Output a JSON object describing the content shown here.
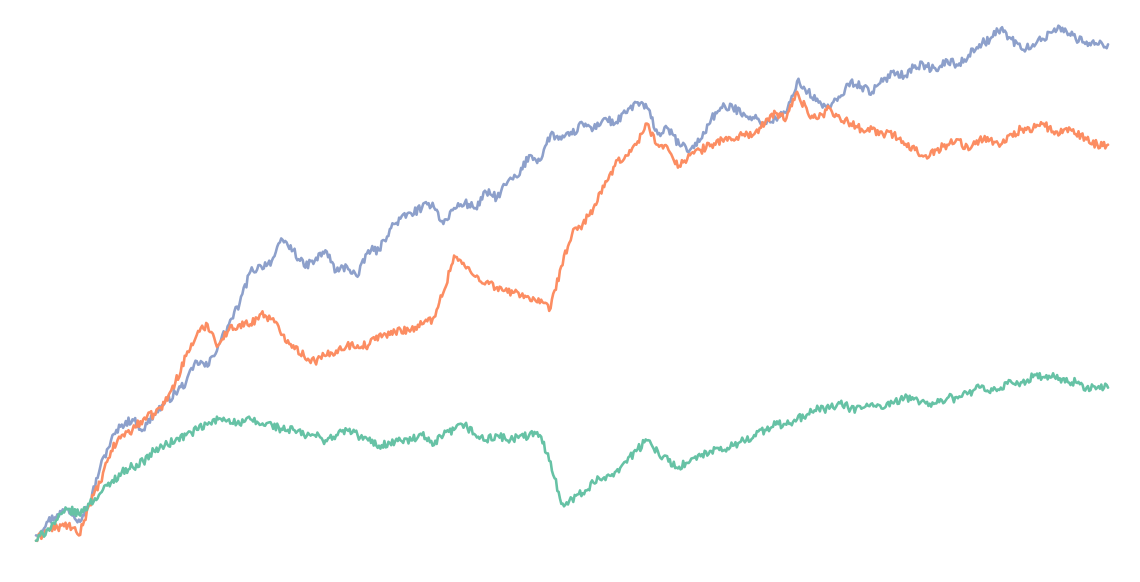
{
  "chart_data": {
    "type": "line",
    "title": "",
    "xlabel": "",
    "ylabel": "",
    "grid": false,
    "legend": "none",
    "x_range": [
      0,
      100
    ],
    "y_range": [
      0,
      100
    ],
    "series": [
      {
        "color": "#8da0cb",
        "points": [
          [
            0,
            2
          ],
          [
            1,
            4.5
          ],
          [
            2,
            6
          ],
          [
            3,
            7
          ],
          [
            4,
            5
          ],
          [
            5,
            8
          ],
          [
            6,
            15
          ],
          [
            7,
            20
          ],
          [
            8,
            23
          ],
          [
            9,
            24
          ],
          [
            10,
            22
          ],
          [
            11,
            25
          ],
          [
            12,
            27
          ],
          [
            13,
            29
          ],
          [
            14,
            31
          ],
          [
            15,
            35
          ],
          [
            16,
            34
          ],
          [
            17,
            38
          ],
          [
            18,
            42
          ],
          [
            19,
            46
          ],
          [
            20,
            52
          ],
          [
            21,
            53
          ],
          [
            22,
            54
          ],
          [
            23,
            58
          ],
          [
            24,
            56
          ],
          [
            25,
            53
          ],
          [
            26,
            54
          ],
          [
            27,
            56
          ],
          [
            28,
            52
          ],
          [
            29,
            53
          ],
          [
            30,
            51
          ],
          [
            31,
            56
          ],
          [
            32,
            56
          ],
          [
            33,
            60
          ],
          [
            34,
            62
          ],
          [
            35,
            63
          ],
          [
            36,
            64
          ],
          [
            37,
            65
          ],
          [
            38,
            61
          ],
          [
            39,
            64
          ],
          [
            40,
            65
          ],
          [
            41,
            64
          ],
          [
            42,
            67
          ],
          [
            43,
            66
          ],
          [
            44,
            69
          ],
          [
            45,
            70
          ],
          [
            46,
            74
          ],
          [
            47,
            73
          ],
          [
            48,
            78
          ],
          [
            49,
            77
          ],
          [
            50,
            78
          ],
          [
            51,
            80
          ],
          [
            52,
            79
          ],
          [
            53,
            81
          ],
          [
            54,
            80
          ],
          [
            55,
            82
          ],
          [
            56,
            84
          ],
          [
            57,
            83
          ],
          [
            58,
            78
          ],
          [
            59,
            79
          ],
          [
            60,
            76
          ],
          [
            61,
            75
          ],
          [
            62,
            77
          ],
          [
            63,
            81
          ],
          [
            64,
            83
          ],
          [
            65,
            83
          ],
          [
            66,
            82
          ],
          [
            67,
            81
          ],
          [
            68,
            80
          ],
          [
            69,
            81
          ],
          [
            70,
            82
          ],
          [
            71,
            88
          ],
          [
            72,
            86
          ],
          [
            73,
            84
          ],
          [
            74,
            83
          ],
          [
            75,
            85
          ],
          [
            76,
            88
          ],
          [
            77,
            87
          ],
          [
            78,
            86
          ],
          [
            79,
            88
          ],
          [
            80,
            90
          ],
          [
            81,
            89
          ],
          [
            82,
            91
          ],
          [
            83,
            91
          ],
          [
            84,
            90
          ],
          [
            85,
            92
          ],
          [
            86,
            91
          ],
          [
            87,
            93
          ],
          [
            88,
            95
          ],
          [
            89,
            96
          ],
          [
            90,
            98
          ],
          [
            91,
            96
          ],
          [
            92,
            94
          ],
          [
            93,
            95
          ],
          [
            94,
            96
          ],
          [
            95,
            98
          ],
          [
            96,
            98
          ],
          [
            97,
            96
          ],
          [
            98,
            95.5
          ],
          [
            99,
            95
          ],
          [
            100,
            95
          ]
        ]
      },
      {
        "color": "#fc8d62",
        "points": [
          [
            0,
            1
          ],
          [
            1,
            3
          ],
          [
            2,
            3.5
          ],
          [
            3,
            4
          ],
          [
            4,
            2
          ],
          [
            5,
            8
          ],
          [
            6,
            12
          ],
          [
            7,
            18
          ],
          [
            8,
            21
          ],
          [
            9,
            22
          ],
          [
            10,
            24
          ],
          [
            11,
            25
          ],
          [
            12,
            27
          ],
          [
            13,
            31
          ],
          [
            14,
            36
          ],
          [
            15,
            40
          ],
          [
            16,
            42
          ],
          [
            17,
            38
          ],
          [
            18,
            41
          ],
          [
            19,
            42
          ],
          [
            20,
            42
          ],
          [
            21,
            44
          ],
          [
            22,
            43
          ],
          [
            23,
            40
          ],
          [
            24,
            38
          ],
          [
            25,
            36
          ],
          [
            26,
            35
          ],
          [
            27,
            36
          ],
          [
            28,
            37
          ],
          [
            29,
            38
          ],
          [
            30,
            38
          ],
          [
            31,
            38
          ],
          [
            32,
            40
          ],
          [
            33,
            40
          ],
          [
            34,
            41
          ],
          [
            35,
            41
          ],
          [
            36,
            42
          ],
          [
            37,
            43
          ],
          [
            38,
            48
          ],
          [
            39,
            55
          ],
          [
            40,
            53
          ],
          [
            41,
            51
          ],
          [
            42,
            50
          ],
          [
            43,
            49
          ],
          [
            44,
            48
          ],
          [
            45,
            48
          ],
          [
            46,
            47
          ],
          [
            47,
            46
          ],
          [
            48,
            45
          ],
          [
            49,
            53
          ],
          [
            50,
            59
          ],
          [
            51,
            61
          ],
          [
            52,
            64
          ],
          [
            53,
            68
          ],
          [
            54,
            72
          ],
          [
            55,
            74
          ],
          [
            56,
            76
          ],
          [
            57,
            80
          ],
          [
            58,
            76
          ],
          [
            59,
            75
          ],
          [
            60,
            72
          ],
          [
            61,
            74
          ],
          [
            62,
            75
          ],
          [
            63,
            76
          ],
          [
            64,
            77
          ],
          [
            65,
            77
          ],
          [
            66,
            78
          ],
          [
            67,
            78
          ],
          [
            68,
            80
          ],
          [
            69,
            82
          ],
          [
            70,
            81
          ],
          [
            71,
            86
          ],
          [
            72,
            82
          ],
          [
            73,
            81
          ],
          [
            74,
            83
          ],
          [
            75,
            81
          ],
          [
            76,
            80
          ],
          [
            77,
            79
          ],
          [
            78,
            79
          ],
          [
            79,
            78
          ],
          [
            80,
            78
          ],
          [
            81,
            76
          ],
          [
            82,
            75
          ],
          [
            83,
            74
          ],
          [
            84,
            75
          ],
          [
            85,
            76
          ],
          [
            86,
            77
          ],
          [
            87,
            75
          ],
          [
            88,
            77
          ],
          [
            89,
            77
          ],
          [
            90,
            76
          ],
          [
            91,
            78
          ],
          [
            92,
            79
          ],
          [
            93,
            79
          ],
          [
            94,
            80
          ],
          [
            95,
            78
          ],
          [
            96,
            79
          ],
          [
            97,
            78
          ],
          [
            98,
            77
          ],
          [
            99,
            76
          ],
          [
            100,
            76
          ]
        ]
      },
      {
        "color": "#66c2a5",
        "points": [
          [
            0,
            1
          ],
          [
            1,
            3
          ],
          [
            2,
            5
          ],
          [
            3,
            7
          ],
          [
            4,
            6
          ],
          [
            5,
            8
          ],
          [
            6,
            10
          ],
          [
            7,
            12
          ],
          [
            8,
            14
          ],
          [
            9,
            15
          ],
          [
            10,
            16
          ],
          [
            11,
            18
          ],
          [
            12,
            19
          ],
          [
            13,
            20
          ],
          [
            14,
            21
          ],
          [
            15,
            22
          ],
          [
            16,
            23
          ],
          [
            17,
            24
          ],
          [
            18,
            24
          ],
          [
            19,
            23
          ],
          [
            20,
            24
          ],
          [
            21,
            23
          ],
          [
            22,
            23
          ],
          [
            23,
            22
          ],
          [
            24,
            22
          ],
          [
            25,
            21
          ],
          [
            26,
            21
          ],
          [
            27,
            20
          ],
          [
            28,
            21
          ],
          [
            29,
            22
          ],
          [
            30,
            21
          ],
          [
            31,
            20
          ],
          [
            32,
            19
          ],
          [
            33,
            19.5
          ],
          [
            34,
            20
          ],
          [
            35,
            20
          ],
          [
            36,
            21
          ],
          [
            37,
            19
          ],
          [
            38,
            21
          ],
          [
            39,
            22
          ],
          [
            40,
            23
          ],
          [
            41,
            21
          ],
          [
            42,
            20
          ],
          [
            43,
            21
          ],
          [
            44,
            20
          ],
          [
            45,
            20.5
          ],
          [
            46,
            21
          ],
          [
            47,
            21
          ],
          [
            48,
            16
          ],
          [
            49,
            8
          ],
          [
            50,
            9
          ],
          [
            51,
            10
          ],
          [
            52,
            12
          ],
          [
            53,
            13
          ],
          [
            54,
            14
          ],
          [
            55,
            16
          ],
          [
            56,
            18
          ],
          [
            57,
            20
          ],
          [
            58,
            18
          ],
          [
            59,
            16
          ],
          [
            60,
            15
          ],
          [
            61,
            16
          ],
          [
            62,
            17
          ],
          [
            63,
            18
          ],
          [
            64,
            18
          ],
          [
            65,
            19
          ],
          [
            66,
            20
          ],
          [
            67,
            21
          ],
          [
            68,
            22
          ],
          [
            69,
            23
          ],
          [
            70,
            23
          ],
          [
            71,
            24
          ],
          [
            72,
            25
          ],
          [
            73,
            26
          ],
          [
            74,
            26
          ],
          [
            75,
            27
          ],
          [
            76,
            26
          ],
          [
            77,
            26
          ],
          [
            78,
            27
          ],
          [
            79,
            26
          ],
          [
            80,
            27
          ],
          [
            81,
            28
          ],
          [
            82,
            28
          ],
          [
            83,
            27
          ],
          [
            84,
            27
          ],
          [
            85,
            28
          ],
          [
            86,
            28
          ],
          [
            87,
            29
          ],
          [
            88,
            30
          ],
          [
            89,
            29
          ],
          [
            90,
            30
          ],
          [
            91,
            31
          ],
          [
            92,
            31
          ],
          [
            93,
            32
          ],
          [
            94,
            32
          ],
          [
            95,
            32
          ],
          [
            96,
            31
          ],
          [
            97,
            31
          ],
          [
            98,
            30
          ],
          [
            99,
            30
          ],
          [
            100,
            30
          ]
        ]
      }
    ]
  }
}
